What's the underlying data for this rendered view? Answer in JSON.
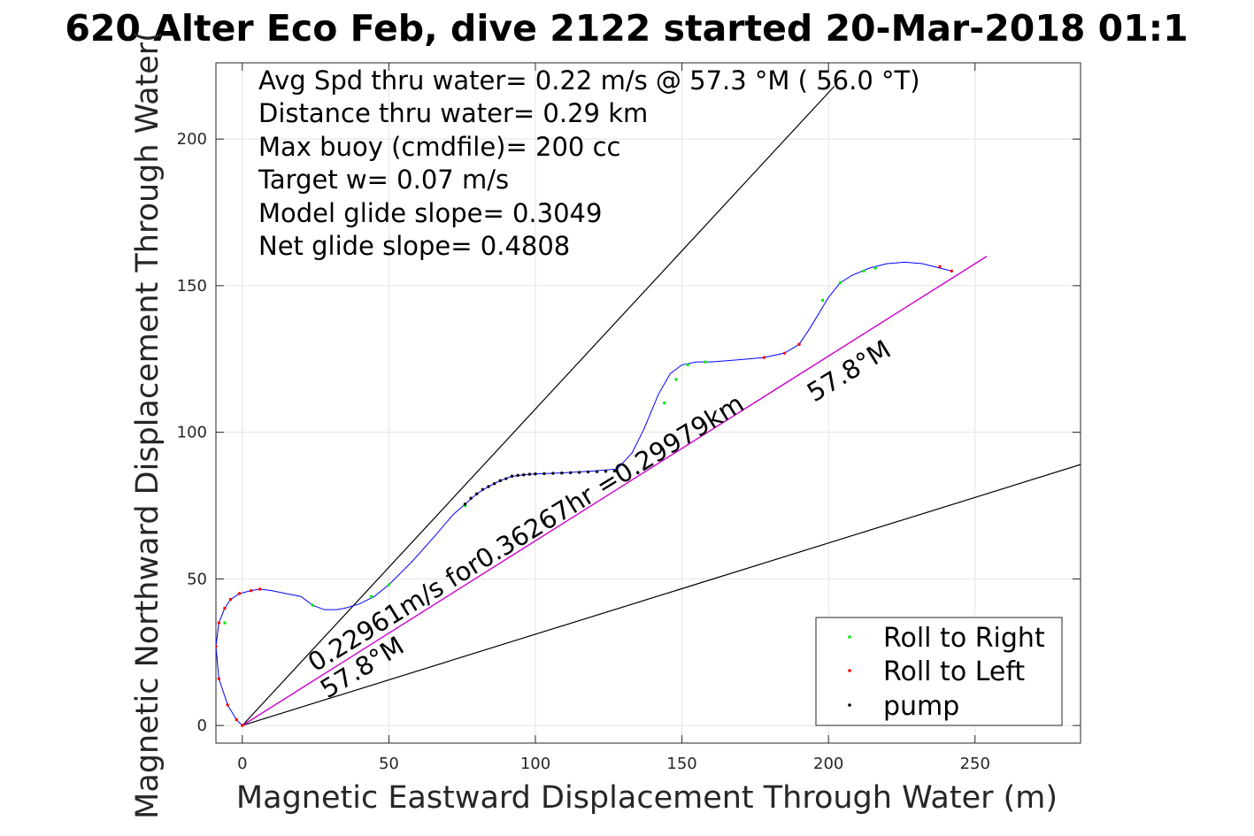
{
  "title": "620 Alter Eco Feb, dive 2122 started 20-Mar-2018 01:1",
  "info_lines": [
    "Avg Spd thru water=  0.22 m/s @  57.3 °M ( 56.0 °T)",
    "Distance thru water=  0.29 km",
    "Max buoy (cmdfile)= 200 cc",
    "Target w= 0.07 m/s",
    "Model glide slope= 0.3049",
    "Net glide slope= 0.4808"
  ],
  "annotations": {
    "speed_label": "0.22961m/s for0.36267hr =0.29979km",
    "heading_upper": "57.8°M",
    "heading_lower": "57.8°M"
  },
  "legend": {
    "items": [
      {
        "label": "Roll to Right",
        "color": "#00ee00"
      },
      {
        "label": "Roll to Left",
        "color": "#ff0000"
      },
      {
        "label": "pump",
        "color": "#000000"
      }
    ]
  },
  "chart_data": {
    "type": "line",
    "xlabel": "Magnetic Eastward Displacement Through Water (m)",
    "ylabel": "Magnetic Northward Displacement Through Water(",
    "xlim": [
      -9,
      286
    ],
    "ylim": [
      -6,
      226
    ],
    "xticks": [
      0,
      50,
      100,
      150,
      200,
      250
    ],
    "yticks": [
      0,
      50,
      100,
      150,
      200
    ],
    "grid": true,
    "legend_position": "bottom-right",
    "colors": {
      "track": "#0000ff",
      "heading_line": "#cc00cc",
      "reference_lines": "#000000"
    },
    "series": [
      {
        "role": "track",
        "x": [
          0,
          -2,
          -5,
          -8,
          -9,
          -8,
          -6,
          -4,
          -1,
          3,
          6,
          10,
          15,
          20,
          24,
          28,
          32,
          35,
          40,
          45,
          50,
          58,
          66,
          72,
          76,
          80,
          84,
          88,
          92,
          96,
          100,
          110,
          120,
          128,
          133,
          137,
          142,
          146,
          150,
          155,
          160,
          170,
          178,
          185,
          190,
          194,
          200,
          204,
          208,
          214,
          220,
          226,
          232,
          236,
          242
        ],
        "y": [
          0,
          2,
          7,
          16,
          27,
          35,
          40,
          43,
          45,
          46,
          46.5,
          46,
          45,
          44,
          41,
          39.5,
          39.5,
          40,
          41.5,
          44,
          48,
          56,
          65,
          72,
          75.5,
          79,
          81.5,
          83.5,
          85,
          85.5,
          85.8,
          86.2,
          86.8,
          87.5,
          93,
          101,
          113,
          120,
          123,
          124,
          124,
          124.8,
          125.5,
          127,
          130,
          136,
          146,
          151,
          153.5,
          156,
          157.5,
          158,
          157.5,
          156.5,
          155
        ]
      },
      {
        "role": "heading_line",
        "x": [
          0,
          254
        ],
        "y": [
          0,
          160
        ]
      },
      {
        "role": "reference_upper",
        "x": [
          0,
          202
        ],
        "y": [
          0,
          218
        ]
      },
      {
        "role": "reference_lower",
        "x": [
          0,
          286
        ],
        "y": [
          0,
          89
        ]
      }
    ],
    "markers": {
      "roll_right": {
        "x": [
          -6,
          -1,
          24,
          44,
          50,
          76,
          144,
          148,
          152,
          158,
          198,
          204,
          212,
          216
        ],
        "y": [
          35,
          45,
          41,
          44,
          48,
          75,
          110,
          118,
          123,
          124,
          145,
          151,
          155,
          156
        ]
      },
      "roll_left": {
        "x": [
          0,
          -2,
          -5,
          -8,
          -9,
          -8,
          -6,
          -4,
          -1,
          3,
          6,
          178,
          185,
          190,
          238,
          242
        ],
        "y": [
          0,
          2,
          7,
          16,
          27,
          35,
          40,
          43,
          45,
          46,
          46.5,
          125.5,
          127,
          130,
          156.5,
          155
        ]
      },
      "pump": {
        "x": [
          76,
          78,
          80,
          82,
          84,
          86,
          88,
          90,
          92,
          94,
          96,
          98,
          100,
          103,
          106,
          109,
          112,
          115,
          118,
          121,
          124,
          127
        ],
        "y": [
          75.5,
          77.5,
          79,
          80.5,
          81.5,
          82.5,
          83.5,
          84.2,
          85,
          85.3,
          85.5,
          85.7,
          85.8,
          85.9,
          86,
          86.1,
          86.2,
          86.3,
          86.5,
          86.6,
          86.7,
          86.8
        ]
      }
    }
  }
}
